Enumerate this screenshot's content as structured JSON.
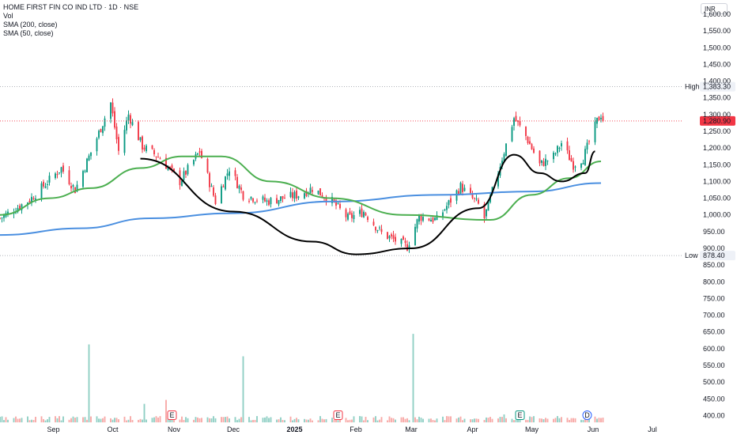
{
  "legend": {
    "title": "HOME FIRST FIN CO IND LTD · 1D · NSE",
    "vol": "Vol",
    "sma200": "SMA (200, close)",
    "sma50": "SMA (50, close)"
  },
  "currency": "INR",
  "colors": {
    "up": "#089981",
    "down": "#f23645",
    "vol_up": "#8fcfc4",
    "vol_down": "#f7a9a7",
    "sma200": "#4a8fe0",
    "sma50": "#4caf50",
    "pattern": "#000000",
    "last_price_bg": "#f23645",
    "label_bg": "#eef1f7"
  },
  "markers": {
    "high_label": "High",
    "high_value": "1,383.30",
    "low_label": "Low",
    "low_value": "878.40",
    "last_value": "1,280.90"
  },
  "events": [
    {
      "symbol": "E",
      "date": "2024-10-31",
      "color": "#f23645"
    },
    {
      "symbol": "E",
      "date": "2025-01-23",
      "color": "#f23645"
    },
    {
      "symbol": "E",
      "date": "2025-04-25",
      "color": "#089981"
    },
    {
      "symbol": "D",
      "date": "2025-05-29",
      "color": "#2962ff"
    }
  ],
  "chart_data": {
    "type": "candlestick",
    "title": "HOME FIRST FIN CO IND LTD · 1D · NSE",
    "price_ticks": [
      "1,600.00",
      "1,550.00",
      "1,500.00",
      "1,450.00",
      "1,400.00",
      "1,350.00",
      "1,300.00",
      "1,250.00",
      "1,200.00",
      "1,150.00",
      "1,100.00",
      "1,050.00",
      "1,000.00",
      "950.00",
      "900.00",
      "850.00",
      "800.00",
      "750.00",
      "700.00",
      "650.00",
      "600.00",
      "550.00",
      "500.00",
      "450.00",
      "400.00"
    ],
    "price_range": [
      375,
      1600
    ],
    "time_ticks": [
      "Sep",
      "Oct",
      "Nov",
      "Dec",
      "2025",
      "Feb",
      "Mar",
      "Apr",
      "May",
      "Jun",
      "Jul"
    ],
    "date_range": [
      "2024-08-05",
      "2025-07-15"
    ],
    "high": 1383.3,
    "low": 878.4,
    "last": 1280.9,
    "anchors": [
      {
        "date": "2024-08-05",
        "close": 990
      },
      {
        "date": "2024-08-20",
        "close": 1045
      },
      {
        "date": "2024-09-05",
        "close": 1140
      },
      {
        "date": "2024-09-12",
        "close": 1075
      },
      {
        "date": "2024-09-23",
        "close": 1230
      },
      {
        "date": "2024-09-30",
        "close": 1335
      },
      {
        "date": "2024-10-04",
        "close": 1190
      },
      {
        "date": "2024-10-09",
        "close": 1300
      },
      {
        "date": "2024-10-16",
        "close": 1205
      },
      {
        "date": "2024-10-25",
        "close": 1170
      },
      {
        "date": "2024-11-04",
        "close": 1100
      },
      {
        "date": "2024-11-14",
        "close": 1190
      },
      {
        "date": "2024-11-22",
        "close": 1040
      },
      {
        "date": "2024-11-29",
        "close": 1140
      },
      {
        "date": "2024-12-06",
        "close": 1060
      },
      {
        "date": "2024-12-18",
        "close": 1040
      },
      {
        "date": "2025-01-03",
        "close": 1060
      },
      {
        "date": "2025-01-10",
        "close": 1080
      },
      {
        "date": "2025-01-20",
        "close": 1040
      },
      {
        "date": "2025-01-28",
        "close": 990
      },
      {
        "date": "2025-02-05",
        "close": 1010
      },
      {
        "date": "2025-02-14",
        "close": 945
      },
      {
        "date": "2025-02-27",
        "close": 905
      },
      {
        "date": "2025-03-05",
        "close": 995
      },
      {
        "date": "2025-03-14",
        "close": 985
      },
      {
        "date": "2025-03-26",
        "close": 1085
      },
      {
        "date": "2025-04-04",
        "close": 1030
      },
      {
        "date": "2025-04-07",
        "close": 990
      },
      {
        "date": "2025-04-10",
        "close": 1050
      },
      {
        "date": "2025-04-17",
        "close": 1190
      },
      {
        "date": "2025-04-22",
        "close": 1290
      },
      {
        "date": "2025-04-28",
        "close": 1235
      },
      {
        "date": "2025-05-05",
        "close": 1150
      },
      {
        "date": "2025-05-12",
        "close": 1175
      },
      {
        "date": "2025-05-16",
        "close": 1215
      },
      {
        "date": "2025-05-22",
        "close": 1150
      },
      {
        "date": "2025-05-27",
        "close": 1170
      },
      {
        "date": "2025-06-03",
        "close": 1280
      },
      {
        "date": "2025-06-06",
        "close": 1310
      }
    ],
    "sma200": [
      {
        "date": "2024-08-05",
        "value": 940
      },
      {
        "date": "2024-09-15",
        "value": 960
      },
      {
        "date": "2024-10-20",
        "value": 990
      },
      {
        "date": "2024-12-01",
        "value": 1005
      },
      {
        "date": "2025-01-20",
        "value": 1040
      },
      {
        "date": "2025-03-15",
        "value": 1060
      },
      {
        "date": "2025-05-01",
        "value": 1070
      },
      {
        "date": "2025-06-05",
        "value": 1095
      }
    ],
    "sma50": [
      {
        "date": "2024-08-05",
        "value": 1000
      },
      {
        "date": "2024-08-30",
        "value": 1050
      },
      {
        "date": "2024-09-20",
        "value": 1080
      },
      {
        "date": "2024-10-15",
        "value": 1140
      },
      {
        "date": "2024-11-05",
        "value": 1175
      },
      {
        "date": "2024-11-25",
        "value": 1175
      },
      {
        "date": "2024-12-20",
        "value": 1100
      },
      {
        "date": "2025-01-20",
        "value": 1050
      },
      {
        "date": "2025-02-25",
        "value": 1000
      },
      {
        "date": "2025-04-10",
        "value": 985
      },
      {
        "date": "2025-05-01",
        "value": 1060
      },
      {
        "date": "2025-05-20",
        "value": 1110
      },
      {
        "date": "2025-06-05",
        "value": 1160
      }
    ],
    "volume_spikes": [
      {
        "date": "2024-09-19",
        "value": 590
      },
      {
        "date": "2024-10-17",
        "value": 140
      },
      {
        "date": "2024-10-28",
        "value": 170
      },
      {
        "date": "2024-12-06",
        "value": 500
      },
      {
        "date": "2025-03-02",
        "value": 670
      },
      {
        "date": "2025-04-17",
        "value": 60
      }
    ],
    "pattern_cup": [
      {
        "date": "2024-10-15",
        "price": 1168
      },
      {
        "date": "2024-12-01",
        "price": 1010
      },
      {
        "date": "2025-01-10",
        "price": 920
      },
      {
        "date": "2025-02-01",
        "price": 882
      },
      {
        "date": "2025-03-01",
        "price": 900
      },
      {
        "date": "2025-04-04",
        "price": 1020
      },
      {
        "date": "2025-04-22",
        "price": 1180
      }
    ],
    "pattern_handle": [
      {
        "date": "2025-04-22",
        "price": 1180
      },
      {
        "date": "2025-05-05",
        "price": 1125
      },
      {
        "date": "2025-05-16",
        "price": 1100
      },
      {
        "date": "2025-05-28",
        "price": 1125
      },
      {
        "date": "2025-06-02",
        "price": 1190
      }
    ]
  }
}
